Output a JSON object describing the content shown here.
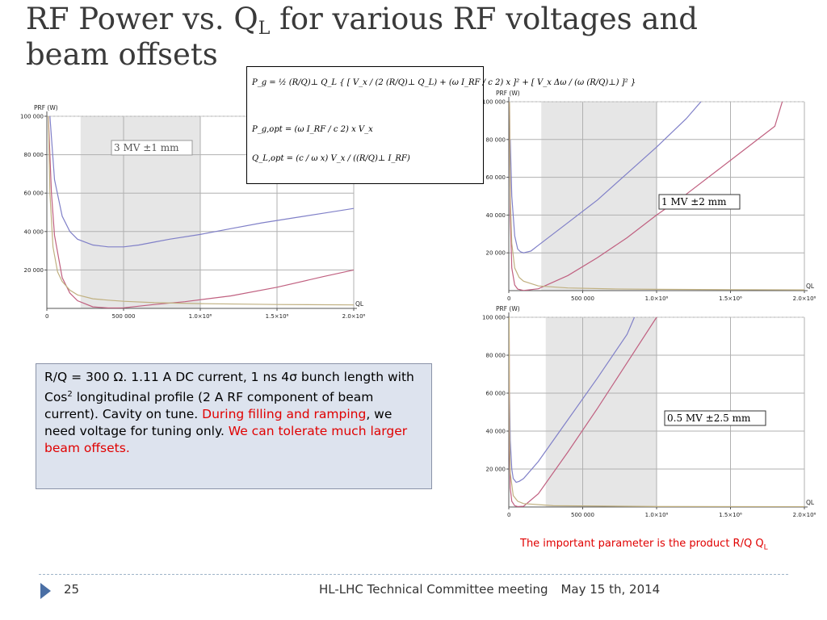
{
  "slide": {
    "title_main": "RF Power vs. Q",
    "title_sub": "L",
    "title_rest_line1": " for various RF voltages and",
    "title_line2": "beam offsets",
    "info_box": {
      "text1": "R/Q = 300 Ω. 1.11 A DC current, 1 ns 4σ bunch length with Cos",
      "sup": "2",
      "text2": " longitudinal profile (2 A RF component of beam current). Cavity on tune. ",
      "red1": "During filling and ramping",
      "text3": ", we need voltage for tuning only. ",
      "red2": "We can tolerate much larger beam offsets."
    },
    "note_main": "The important parameter is the product R/Q Q",
    "note_sub": "L",
    "page_number": "25",
    "footer_text": "HL-LHC Technical Committee meeting",
    "footer_date": "May 15 th, 2014",
    "equations": {
      "eq1": "P_g = ½ (R/Q)⊥ Q_L { [ V_x / (2 (R/Q)⊥ Q_L) + (ω I_RF / c 2) x ]² + [ V_x Δω / (ω (R/Q)⊥) ]² }",
      "eq2": "P_g,opt = (ω I_RF / c 2) x V_x",
      "eq3": "Q_L,opt = (c / ω x) V_x / ((R/Q)⊥ I_RF)"
    },
    "colors": {
      "blue": "#8080c8",
      "red": "#c06080",
      "tan": "#c0b080",
      "shade": "#e6e6e6",
      "accent_red": "#e00000",
      "title_gray": "#3a3a3a"
    }
  },
  "chart_data": [
    {
      "type": "line",
      "ylabel": "PRF (W)",
      "xlabel": "QL",
      "annotation": {
        "value": "3",
        "unit": "MV",
        "offset": "±1",
        "offset_unit": "mm"
      },
      "xlim": [
        0,
        2000000
      ],
      "ylim": [
        0,
        100000
      ],
      "xticks": [
        "0",
        "500 000",
        "1.0×10⁶",
        "1.5×10⁶",
        "2.0×10⁶"
      ],
      "yticks": [
        "20 000",
        "40 000",
        "60 000",
        "80 000",
        "100 000"
      ],
      "shaded_range": [
        220000,
        1000000
      ],
      "series": [
        {
          "color": "blue",
          "x": [
            20000,
            50000,
            100000,
            150000,
            200000,
            300000,
            400000,
            500000,
            600000,
            700000,
            800000,
            1000000,
            1200000,
            1400000,
            1600000,
            1800000,
            2000000
          ],
          "y": [
            100000,
            67000,
            48000,
            40000,
            36000,
            33000,
            32000,
            32000,
            33000,
            34500,
            36000,
            38500,
            41500,
            44500,
            47000,
            49500,
            52000
          ]
        },
        {
          "color": "red",
          "x": [
            10000,
            30000,
            50000,
            100000,
            150000,
            200000,
            300000,
            400000,
            500000,
            700000,
            900000,
            1200000,
            1500000,
            1800000,
            2000000
          ],
          "y": [
            100000,
            60000,
            38000,
            16000,
            8000,
            4000,
            800,
            200,
            300,
            2000,
            3500,
            6500,
            11000,
            16500,
            20000
          ]
        },
        {
          "color": "tan",
          "x": [
            10000,
            20000,
            40000,
            70000,
            100000,
            150000,
            200000,
            300000,
            400000,
            500000,
            700000,
            1000000,
            1500000,
            2000000
          ],
          "y": [
            100000,
            60000,
            32000,
            19000,
            14000,
            9500,
            7000,
            5000,
            4300,
            3700,
            3000,
            2500,
            2000,
            1800
          ]
        }
      ]
    },
    {
      "type": "line",
      "ylabel": "PRF (W)",
      "xlabel": "QL",
      "annotation": {
        "value": "1",
        "unit": "MV",
        "offset": "±2",
        "offset_unit": "mm"
      },
      "xlim": [
        0,
        2000000
      ],
      "ylim": [
        0,
        100000
      ],
      "xticks": [
        "0",
        "500 000",
        "1.0×10⁶",
        "1.5×10⁶",
        "2.0×10⁶"
      ],
      "yticks": [
        "20 000",
        "40 000",
        "60 000",
        "80 000",
        "100 000"
      ],
      "shaded_range": [
        220000,
        1000000
      ],
      "series": [
        {
          "color": "blue",
          "x": [
            10000,
            20000,
            40000,
            60000,
            80000,
            100000,
            150000,
            200000,
            300000,
            400000,
            600000,
            800000,
            1000000,
            1200000,
            1300000
          ],
          "y": [
            80000,
            50000,
            29000,
            22000,
            20500,
            20000,
            21000,
            24000,
            30000,
            36000,
            48000,
            62000,
            76000,
            91000,
            100000
          ]
        },
        {
          "color": "red",
          "x": [
            5000,
            10000,
            20000,
            40000,
            60000,
            100000,
            200000,
            400000,
            600000,
            800000,
            1000000,
            1200000,
            1400000,
            1600000,
            1800000,
            1850000
          ],
          "y": [
            100000,
            40000,
            12000,
            3000,
            800,
            100,
            1000,
            8000,
            17500,
            28000,
            40000,
            51000,
            63000,
            75000,
            87000,
            100000
          ]
        },
        {
          "color": "tan",
          "x": [
            5000,
            10000,
            20000,
            40000,
            70000,
            100000,
            200000,
            400000,
            700000,
            1000000,
            1500000,
            2000000
          ],
          "y": [
            100000,
            50000,
            25000,
            12000,
            7000,
            5000,
            2500,
            1400,
            900,
            700,
            500,
            400
          ]
        }
      ]
    },
    {
      "type": "line",
      "ylabel": "PRF (W)",
      "xlabel": "QL",
      "annotation": {
        "value": "0.5",
        "unit": "MV",
        "offset": "±2.5",
        "offset_unit": "mm"
      },
      "xlim": [
        0,
        2000000
      ],
      "ylim": [
        0,
        100000
      ],
      "xticks": [
        "0",
        "500 000",
        "1.0×10⁶",
        "1.5×10⁶",
        "2.0×10⁶"
      ],
      "yticks": [
        "20 000",
        "40 000",
        "60 000",
        "80 000",
        "100 000"
      ],
      "shaded_range": [
        250000,
        1000000
      ],
      "series": [
        {
          "color": "blue",
          "x": [
            5000,
            10000,
            20000,
            30000,
            50000,
            70000,
            100000,
            200000,
            400000,
            600000,
            800000,
            850000
          ],
          "y": [
            60000,
            35000,
            20000,
            15000,
            13000,
            13500,
            15000,
            24000,
            46000,
            68000,
            91000,
            100000
          ]
        },
        {
          "color": "red",
          "x": [
            2000,
            5000,
            10000,
            20000,
            40000,
            60000,
            100000,
            200000,
            400000,
            600000,
            800000,
            1000000
          ],
          "y": [
            100000,
            30000,
            10000,
            3000,
            700,
            200,
            400,
            7000,
            29000,
            52000,
            76000,
            100000
          ]
        },
        {
          "color": "tan",
          "x": [
            2000,
            5000,
            10000,
            30000,
            60000,
            100000,
            300000,
            1000000,
            2000000
          ],
          "y": [
            100000,
            40000,
            18000,
            6000,
            3000,
            1800,
            700,
            250,
            150
          ]
        }
      ]
    }
  ]
}
